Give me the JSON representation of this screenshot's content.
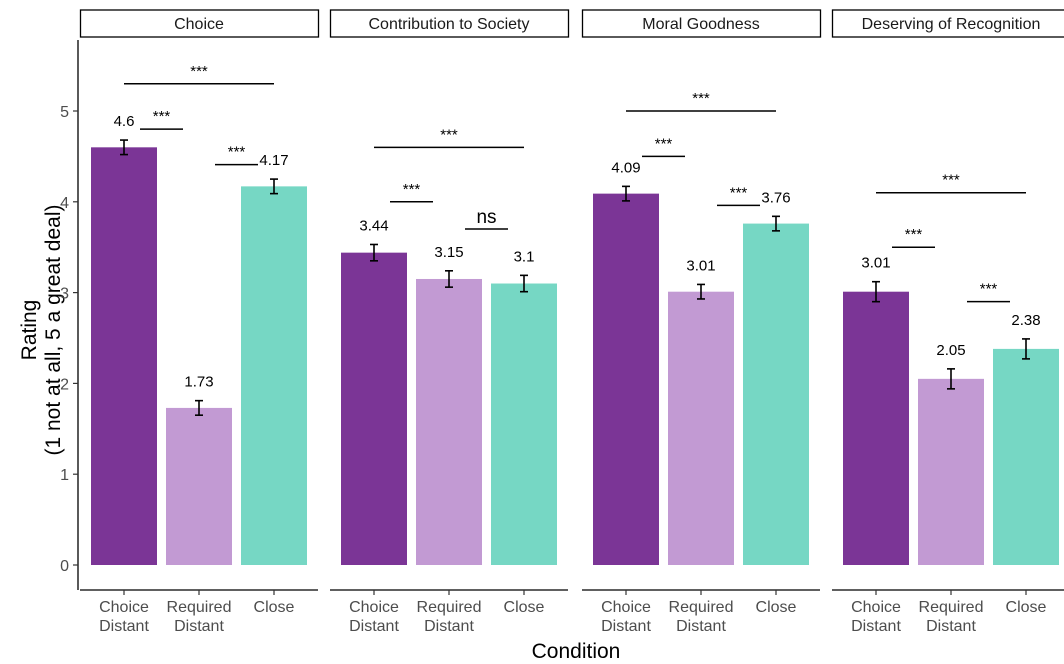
{
  "chart_data": {
    "type": "bar",
    "xlabel": "Condition",
    "ylabel": "Rating\n(1 not at all, 5 a great deal)",
    "ylim": [
      0,
      5.8
    ],
    "yticks": [
      0,
      1,
      2,
      3,
      4,
      5
    ],
    "grid": false,
    "categories": [
      "Choice\nDistant",
      "Required\nDistant",
      "Close"
    ],
    "colors": [
      "#7b3596",
      "#c29ad3",
      "#76d7c4"
    ],
    "panels": [
      {
        "title": "Choice",
        "values": [
          4.6,
          1.73,
          4.17
        ],
        "labels": [
          "4.6",
          "1.73",
          "4.17"
        ],
        "errors": [
          0.08,
          0.08,
          0.08
        ],
        "comparisons": [
          {
            "from": 0,
            "to": 1,
            "y": 4.8,
            "label": "***"
          },
          {
            "from": 1,
            "to": 2,
            "y": 4.41,
            "label": "***"
          },
          {
            "from": 0,
            "to": 2,
            "y": 5.3,
            "label": "***"
          }
        ]
      },
      {
        "title": "Contribution to Society",
        "values": [
          3.44,
          3.15,
          3.1
        ],
        "labels": [
          "3.44",
          "3.15",
          "3.1"
        ],
        "errors": [
          0.09,
          0.09,
          0.09
        ],
        "comparisons": [
          {
            "from": 0,
            "to": 1,
            "y": 4.0,
            "label": "***"
          },
          {
            "from": 1,
            "to": 2,
            "y": 3.7,
            "label": "ns"
          },
          {
            "from": 0,
            "to": 2,
            "y": 4.6,
            "label": "***"
          }
        ]
      },
      {
        "title": "Moral Goodness",
        "values": [
          4.09,
          3.01,
          3.76
        ],
        "labels": [
          "4.09",
          "3.01",
          "3.76"
        ],
        "errors": [
          0.08,
          0.08,
          0.08
        ],
        "comparisons": [
          {
            "from": 0,
            "to": 1,
            "y": 4.5,
            "label": "***"
          },
          {
            "from": 1,
            "to": 2,
            "y": 3.96,
            "label": "***"
          },
          {
            "from": 0,
            "to": 2,
            "y": 5.0,
            "label": "***"
          }
        ]
      },
      {
        "title": "Deserving of Recognition",
        "values": [
          3.01,
          2.05,
          2.38
        ],
        "labels": [
          "3.01",
          "2.05",
          "2.38"
        ],
        "errors": [
          0.11,
          0.11,
          0.11
        ],
        "comparisons": [
          {
            "from": 0,
            "to": 1,
            "y": 3.5,
            "label": "***"
          },
          {
            "from": 1,
            "to": 2,
            "y": 2.9,
            "label": "***"
          },
          {
            "from": 0,
            "to": 2,
            "y": 4.1,
            "label": "***"
          }
        ]
      }
    ]
  }
}
